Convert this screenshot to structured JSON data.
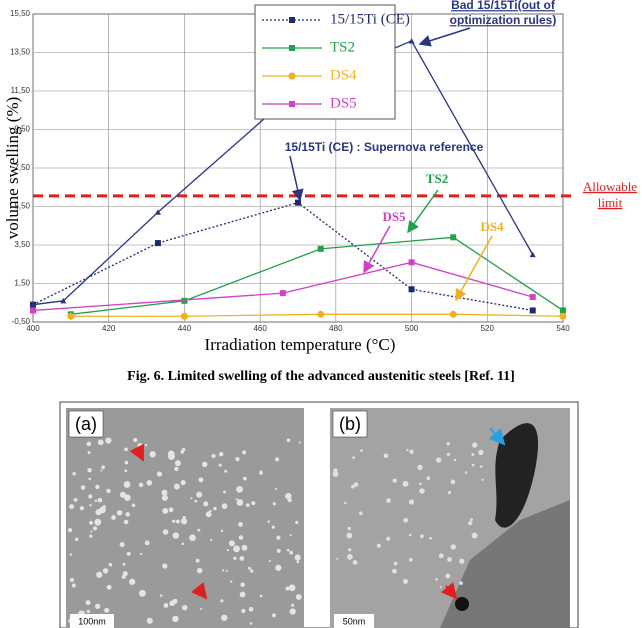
{
  "chart_data": {
    "type": "line",
    "x_label": "Irradiation temperature (°C)",
    "y_label": "volume swelling (%)",
    "xlim": [
      400,
      540
    ],
    "xticks": [
      400,
      420,
      440,
      460,
      480,
      500,
      520,
      540
    ],
    "ylim": [
      -0.5,
      15.5
    ],
    "yticks": [
      {
        "value": -0.5,
        "label": "-0,50"
      },
      {
        "value": 1.5,
        "label": "1,50"
      },
      {
        "value": 3.5,
        "label": "3,50"
      },
      {
        "value": 5.5,
        "label": "5,50"
      },
      {
        "value": 7.5,
        "label": "7,50"
      },
      {
        "value": 9.5,
        "label": "9,50"
      },
      {
        "value": 11.5,
        "label": "11,50"
      },
      {
        "value": 13.5,
        "label": "13,50"
      },
      {
        "value": 15.5,
        "label": "15,50"
      }
    ],
    "grid": true,
    "series": [
      {
        "name": "15/15Ti (CE)",
        "color": "#1f2a6e",
        "dash": true,
        "marker": "square",
        "x": [
          400,
          433,
          470,
          500,
          532
        ],
        "values": [
          0.4,
          3.6,
          5.7,
          1.2,
          0.1
        ]
      },
      {
        "name": "TS2",
        "color": "#22a04a",
        "dash": false,
        "marker": "square",
        "x": [
          410,
          440,
          476,
          511,
          540
        ],
        "values": [
          -0.1,
          0.6,
          3.3,
          3.9,
          0.1
        ]
      },
      {
        "name": "DS4",
        "color": "#f0b020",
        "dash": false,
        "marker": "circle",
        "x": [
          410,
          440,
          476,
          511,
          540
        ],
        "values": [
          -0.2,
          -0.2,
          -0.1,
          -0.1,
          -0.2
        ]
      },
      {
        "name": "DS5",
        "color": "#d23fc8",
        "dash": false,
        "marker": "square",
        "x": [
          400,
          466,
          500,
          532
        ],
        "values": [
          0.1,
          1.0,
          2.6,
          0.8
        ]
      }
    ],
    "bad_series": {
      "color": "#2a3580",
      "marker": "triangle",
      "x": [
        400,
        408,
        433,
        470,
        500,
        532
      ],
      "values": [
        0.4,
        0.6,
        5.2,
        11.6,
        14.1,
        3.0
      ],
      "annotation": [
        "Bad 15/15Ti(out of",
        "optimization rules)"
      ]
    },
    "reference_annotation": "15/15Ti (CE) : Supernova reference",
    "series_labels": [
      "TS2",
      "DS4",
      "DS5"
    ],
    "limit": {
      "value": 6.05,
      "color": "#e02020",
      "label": [
        "Allowable",
        "limit"
      ]
    }
  },
  "caption": "Fig. 6. Limited swelling of the advanced austenitic steels [Ref. 11]",
  "micrographs": [
    {
      "label": "(a)",
      "scale": "100nm"
    },
    {
      "label": "(b)",
      "scale": "50nm"
    }
  ]
}
